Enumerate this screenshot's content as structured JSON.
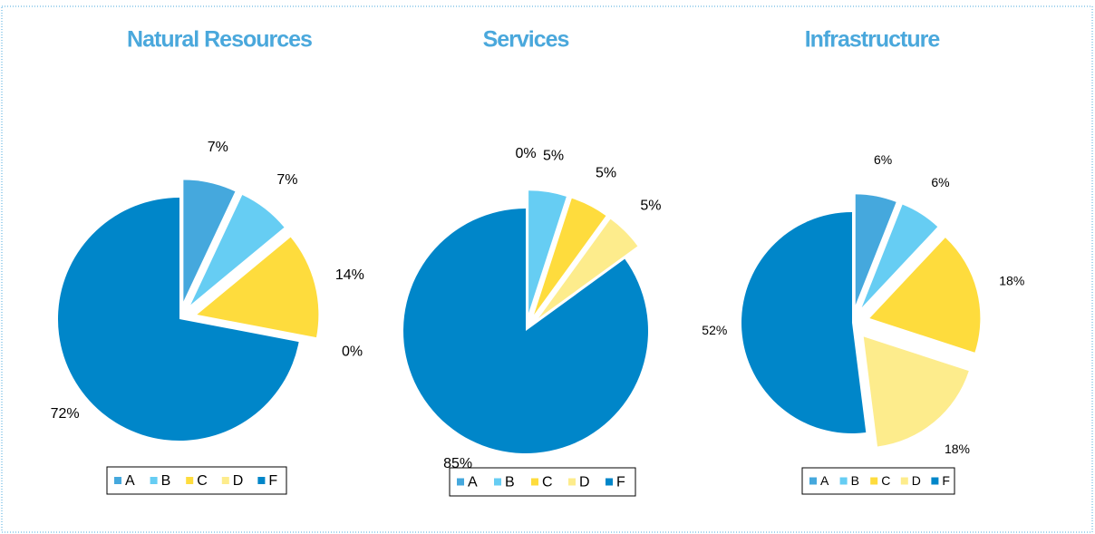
{
  "chart_data": [
    {
      "type": "pie",
      "title": "Natural Resources",
      "categories": [
        "A",
        "B",
        "C",
        "D",
        "F"
      ],
      "values": [
        7,
        7,
        14,
        0,
        72
      ],
      "value_labels": [
        "7%",
        "7%",
        "14%",
        "0%",
        "72%"
      ],
      "colors": [
        "#45a8dd",
        "#66cdf3",
        "#fedc3d",
        "#fdec8c",
        "#0086c9"
      ],
      "legend": "bottom"
    },
    {
      "type": "pie",
      "title": "Services",
      "categories": [
        "A",
        "B",
        "C",
        "D",
        "F"
      ],
      "values": [
        0,
        5,
        5,
        5,
        85
      ],
      "value_labels": [
        "0%",
        "5%",
        "5%",
        "5%",
        "85%"
      ],
      "colors": [
        "#45a8dd",
        "#66cdf3",
        "#fedc3d",
        "#fdec8c",
        "#0086c9"
      ],
      "legend": "bottom"
    },
    {
      "type": "pie",
      "title": "Infrastructure",
      "categories": [
        "A",
        "B",
        "C",
        "D",
        "F"
      ],
      "values": [
        6,
        6,
        18,
        18,
        52
      ],
      "value_labels": [
        "6%",
        "6%",
        "18%",
        "18%",
        "52%"
      ],
      "colors": [
        "#45a8dd",
        "#66cdf3",
        "#fedc3d",
        "#fdec8c",
        "#0086c9"
      ],
      "legend": "bottom"
    }
  ]
}
